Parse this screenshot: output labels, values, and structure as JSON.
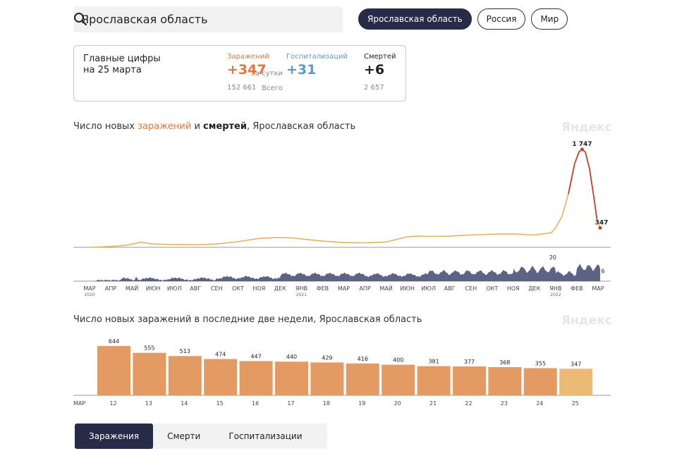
{
  "search": {
    "value": "Ярославская область"
  },
  "region_tabs": [
    {
      "label": "Ярославская область",
      "active": true
    },
    {
      "label": "Россия",
      "active": false
    },
    {
      "label": "Мир",
      "active": false
    }
  ],
  "summary": {
    "title": "Главные цифры\nна 25 марта",
    "row_day": "За сутки",
    "row_total": "Всего",
    "cols": [
      {
        "head": "Заражений",
        "day": "+347",
        "total": "152 661",
        "color": "#e4763f"
      },
      {
        "head": "Госпитализаций",
        "day": "+31",
        "total": "",
        "color": "#5c9ac8"
      },
      {
        "head": "Смертей",
        "day": "+6",
        "total": "2 657",
        "color": "#222222"
      }
    ]
  },
  "chart1_title": {
    "p1": "Число новых ",
    "p2": "заражений",
    "p3": " и ",
    "p4": "смертей",
    "p5": ", Ярославская область"
  },
  "chart2_title": "Число новых заражений в последние две недели, Ярославская область",
  "brand": "Яндекс",
  "chart_data": [
    {
      "type": "line",
      "title": "Число новых заражений и смертей, Ярославская область",
      "x_month_labels": [
        "МАР",
        "АПР",
        "МАЙ",
        "ИЮН",
        "ИЮЛ",
        "АВГ",
        "СЕН",
        "ОКТ",
        "НОЯ",
        "ДЕК",
        "ЯНВ",
        "ФЕВ",
        "МАР",
        "АПР",
        "МАЙ",
        "ИЮН",
        "ИЮЛ",
        "АВГ",
        "СЕН",
        "ОКТ",
        "НОЯ",
        "ДЕК",
        "ЯНВ",
        "ФЕВ",
        "МАР"
      ],
      "year_labels": [
        {
          "month_index": 0,
          "year": "2020"
        },
        {
          "month_index": 10,
          "year": "2021"
        },
        {
          "month_index": 22,
          "year": "2022"
        }
      ],
      "infections": {
        "ylim": [
          0,
          1900
        ],
        "x": [
          0,
          1,
          1.8,
          2.4,
          3,
          4,
          5,
          6,
          7,
          8,
          8.8,
          9.5,
          10,
          11,
          12,
          13,
          14,
          15,
          15.5,
          16,
          17,
          18,
          19,
          20,
          21,
          21.8,
          22,
          22.3,
          22.6,
          22.9,
          23.1,
          23.25,
          23.4,
          23.6,
          23.8,
          23.95,
          24.1
        ],
        "values": [
          0,
          15,
          40,
          90,
          60,
          50,
          45,
          60,
          100,
          160,
          175,
          170,
          150,
          110,
          85,
          80,
          95,
          190,
          200,
          195,
          200,
          220,
          235,
          240,
          220,
          260,
          350,
          550,
          950,
          1500,
          1700,
          1747,
          1700,
          1400,
          900,
          500,
          347
        ],
        "annotations": [
          {
            "x": 23.25,
            "value": 1747,
            "label": "1 747"
          },
          {
            "x": 24.1,
            "value": 347,
            "label": "347"
          }
        ]
      },
      "deaths": {
        "ylim": [
          0,
          24
        ],
        "annotations": [
          {
            "x": 22.0,
            "value": 20,
            "label": "20"
          },
          {
            "x": 24.1,
            "value": 6,
            "label": "6"
          }
        ]
      }
    },
    {
      "type": "bar",
      "title": "Число новых заражений в последние две недели, Ярославская область",
      "month_label": "МАР",
      "categories": [
        "12",
        "13",
        "14",
        "15",
        "16",
        "17",
        "18",
        "19",
        "20",
        "21",
        "22",
        "23",
        "24",
        "25"
      ],
      "values": [
        644,
        555,
        513,
        474,
        447,
        440,
        429,
        416,
        400,
        381,
        377,
        368,
        355,
        347
      ],
      "weekend_categories": [
        "12",
        "13",
        "19",
        "20"
      ],
      "ylim": [
        0,
        680
      ]
    }
  ],
  "colors": {
    "orange": "#e4763f",
    "bar": "#e49a63",
    "bar_today": "#ebba74",
    "line": "#e4b35f",
    "peak_line": "#c9412b",
    "deaths_area": "#4a5278",
    "weekend_red": "#e0473b",
    "dark": "#262b47"
  },
  "bottom_tabs": [
    {
      "label": "Заражения",
      "active": true
    },
    {
      "label": "Смерти",
      "active": false
    },
    {
      "label": "Госпитализации",
      "active": false
    }
  ]
}
